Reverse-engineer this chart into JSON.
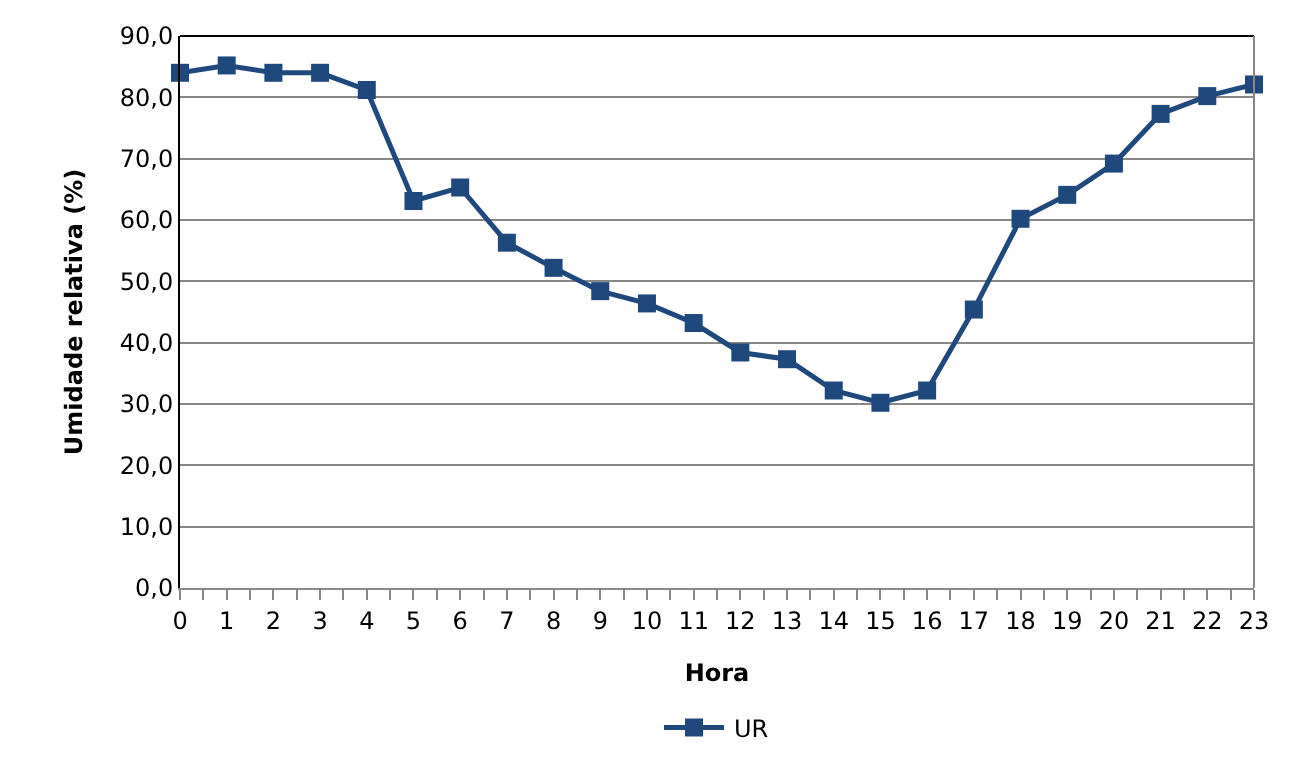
{
  "chart_data": {
    "type": "line",
    "xlabel": "Hora",
    "ylabel": "Umidade relativa (%)",
    "x": [
      0,
      1,
      2,
      3,
      4,
      5,
      6,
      7,
      8,
      9,
      10,
      11,
      12,
      13,
      14,
      15,
      16,
      17,
      18,
      19,
      20,
      21,
      22,
      23
    ],
    "series": [
      {
        "name": "UR",
        "color": "#1f497d",
        "values": [
          84.0,
          85.2,
          84.0,
          84.0,
          81.2,
          63.1,
          65.3,
          56.3,
          52.2,
          48.4,
          46.4,
          43.2,
          38.4,
          37.3,
          32.2,
          30.2,
          32.2,
          45.4,
          60.2,
          64.1,
          69.2,
          77.3,
          80.2,
          82.1
        ]
      }
    ],
    "xlim": [
      0,
      23
    ],
    "xticks": [
      0,
      1,
      2,
      3,
      4,
      5,
      6,
      7,
      8,
      9,
      10,
      11,
      12,
      13,
      14,
      15,
      16,
      17,
      18,
      19,
      20,
      21,
      22,
      23
    ],
    "ylim": [
      0,
      90
    ],
    "yticks": [
      {
        "value": 0,
        "label": "0,0"
      },
      {
        "value": 10,
        "label": "10,0"
      },
      {
        "value": 20,
        "label": "20,0"
      },
      {
        "value": 30,
        "label": "30,0"
      },
      {
        "value": 40,
        "label": "40,0"
      },
      {
        "value": 50,
        "label": "50,0"
      },
      {
        "value": 60,
        "label": "60,0"
      },
      {
        "value": 70,
        "label": "70,0"
      },
      {
        "value": 80,
        "label": "80,0"
      },
      {
        "value": 90,
        "label": "90,0"
      }
    ],
    "grid": "y",
    "legend": "bottom",
    "marker": "square",
    "line_style": "solid"
  }
}
